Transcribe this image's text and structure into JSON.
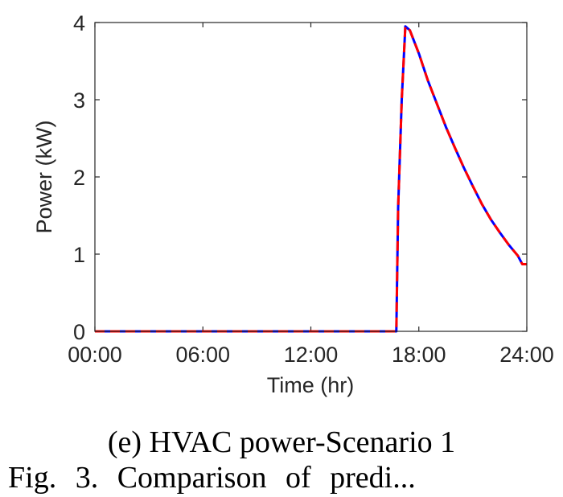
{
  "chart_data": {
    "type": "line",
    "xlabel": "Time (hr)",
    "ylabel": "Power (kW)",
    "xlim": [
      0,
      24
    ],
    "ylim": [
      0,
      4
    ],
    "x_ticks": [
      0,
      6,
      12,
      18,
      24
    ],
    "x_tick_labels": [
      "00:00",
      "06:00",
      "12:00",
      "18:00",
      "24:00"
    ],
    "y_ticks": [
      0,
      1,
      2,
      3,
      4
    ],
    "y_tick_labels": [
      "0",
      "1",
      "2",
      "3",
      "4"
    ],
    "grid": false,
    "series": [
      {
        "color": "#0000ff",
        "style": "solid",
        "x": [
          0,
          16.75,
          16.85,
          17.05,
          17.25,
          17.5,
          18,
          18.5,
          19,
          19.5,
          20,
          20.5,
          21,
          21.5,
          22,
          22.5,
          23,
          23.5,
          23.75,
          24
        ],
        "y": [
          0,
          0,
          1.6,
          3.0,
          3.95,
          3.9,
          3.6,
          3.25,
          2.95,
          2.65,
          2.38,
          2.12,
          1.88,
          1.65,
          1.45,
          1.28,
          1.12,
          0.98,
          0.87,
          0.87
        ]
      },
      {
        "color": "#ff0000",
        "style": "dashed",
        "x": [
          0,
          16.75,
          16.85,
          17.05,
          17.25,
          17.5,
          18,
          18.5,
          19,
          19.5,
          20,
          20.5,
          21,
          21.5,
          22,
          22.5,
          23,
          23.5,
          23.75,
          24
        ],
        "y": [
          0,
          0,
          1.6,
          3.0,
          3.95,
          3.9,
          3.6,
          3.25,
          2.95,
          2.65,
          2.38,
          2.12,
          1.88,
          1.65,
          1.45,
          1.28,
          1.12,
          0.98,
          0.87,
          0.87
        ]
      }
    ]
  },
  "subcaption": "(e) HVAC power-Scenario 1",
  "figure_caption": "Fig. 3.  Comparison of predi..."
}
